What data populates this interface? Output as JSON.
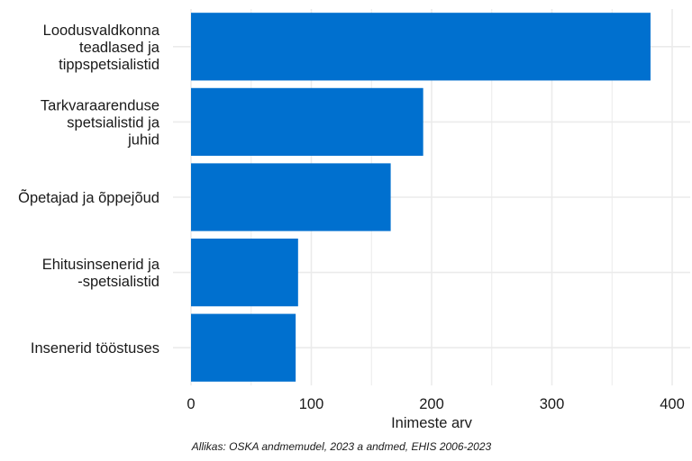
{
  "chart_data": {
    "type": "bar",
    "orientation": "horizontal",
    "categories": [
      "Loodusvaldkonna teadlased ja tippspetsialistid",
      "Tarkvaraarenduse spetsialistid ja juhid",
      "Õpetajad ja õppejõud",
      "Ehitusinsenerid ja -spetsialistid",
      "Insenerid tööstuses"
    ],
    "category_lines": [
      [
        "Loodusvaldkonna",
        "teadlased ja",
        "tippspetsialistid"
      ],
      [
        "Tarkvaraarenduse",
        "spetsialistid ja",
        "juhid"
      ],
      [
        "Õpetajad ja õppejõud"
      ],
      [
        "Ehitusinsenerid ja",
        "-spetsialistid"
      ],
      [
        "Insenerid tööstuses"
      ]
    ],
    "values": [
      382,
      193,
      166,
      89,
      87
    ],
    "xlabel": "Inimeste arv",
    "ylabel": "",
    "xlim": [
      0,
      400
    ],
    "xticks": [
      0,
      100,
      200,
      300,
      400
    ],
    "grid": true,
    "bar_color": "#0070cf",
    "grid_color": "#ebebeb",
    "caption": "Allikas: OSKA andmemudel, 2023 a andmed, EHIS 2006-2023"
  }
}
